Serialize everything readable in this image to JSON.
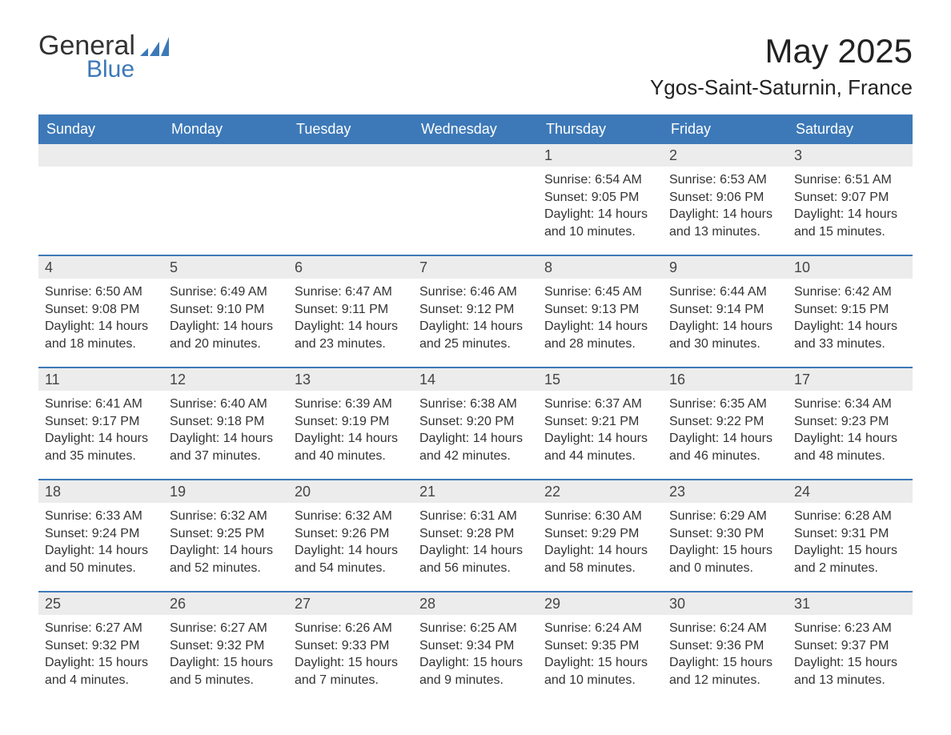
{
  "logo": {
    "general": "General",
    "blue": "Blue"
  },
  "header": {
    "title": "May 2025",
    "location": "Ygos-Saint-Saturnin, France"
  },
  "colors": {
    "header_bg": "#3d79b8",
    "header_text": "#ffffff",
    "daynum_bg": "#ececec",
    "row_border": "#3d79b8",
    "text": "#333333",
    "logo_blue": "#3d79b8"
  },
  "day_headers": [
    "Sunday",
    "Monday",
    "Tuesday",
    "Wednesday",
    "Thursday",
    "Friday",
    "Saturday"
  ],
  "weeks": [
    [
      {
        "empty": true
      },
      {
        "empty": true
      },
      {
        "empty": true
      },
      {
        "empty": true
      },
      {
        "num": "1",
        "sunrise": "Sunrise: 6:54 AM",
        "sunset": "Sunset: 9:05 PM",
        "daylight1": "Daylight: 14 hours",
        "daylight2": "and 10 minutes."
      },
      {
        "num": "2",
        "sunrise": "Sunrise: 6:53 AM",
        "sunset": "Sunset: 9:06 PM",
        "daylight1": "Daylight: 14 hours",
        "daylight2": "and 13 minutes."
      },
      {
        "num": "3",
        "sunrise": "Sunrise: 6:51 AM",
        "sunset": "Sunset: 9:07 PM",
        "daylight1": "Daylight: 14 hours",
        "daylight2": "and 15 minutes."
      }
    ],
    [
      {
        "num": "4",
        "sunrise": "Sunrise: 6:50 AM",
        "sunset": "Sunset: 9:08 PM",
        "daylight1": "Daylight: 14 hours",
        "daylight2": "and 18 minutes."
      },
      {
        "num": "5",
        "sunrise": "Sunrise: 6:49 AM",
        "sunset": "Sunset: 9:10 PM",
        "daylight1": "Daylight: 14 hours",
        "daylight2": "and 20 minutes."
      },
      {
        "num": "6",
        "sunrise": "Sunrise: 6:47 AM",
        "sunset": "Sunset: 9:11 PM",
        "daylight1": "Daylight: 14 hours",
        "daylight2": "and 23 minutes."
      },
      {
        "num": "7",
        "sunrise": "Sunrise: 6:46 AM",
        "sunset": "Sunset: 9:12 PM",
        "daylight1": "Daylight: 14 hours",
        "daylight2": "and 25 minutes."
      },
      {
        "num": "8",
        "sunrise": "Sunrise: 6:45 AM",
        "sunset": "Sunset: 9:13 PM",
        "daylight1": "Daylight: 14 hours",
        "daylight2": "and 28 minutes."
      },
      {
        "num": "9",
        "sunrise": "Sunrise: 6:44 AM",
        "sunset": "Sunset: 9:14 PM",
        "daylight1": "Daylight: 14 hours",
        "daylight2": "and 30 minutes."
      },
      {
        "num": "10",
        "sunrise": "Sunrise: 6:42 AM",
        "sunset": "Sunset: 9:15 PM",
        "daylight1": "Daylight: 14 hours",
        "daylight2": "and 33 minutes."
      }
    ],
    [
      {
        "num": "11",
        "sunrise": "Sunrise: 6:41 AM",
        "sunset": "Sunset: 9:17 PM",
        "daylight1": "Daylight: 14 hours",
        "daylight2": "and 35 minutes."
      },
      {
        "num": "12",
        "sunrise": "Sunrise: 6:40 AM",
        "sunset": "Sunset: 9:18 PM",
        "daylight1": "Daylight: 14 hours",
        "daylight2": "and 37 minutes."
      },
      {
        "num": "13",
        "sunrise": "Sunrise: 6:39 AM",
        "sunset": "Sunset: 9:19 PM",
        "daylight1": "Daylight: 14 hours",
        "daylight2": "and 40 minutes."
      },
      {
        "num": "14",
        "sunrise": "Sunrise: 6:38 AM",
        "sunset": "Sunset: 9:20 PM",
        "daylight1": "Daylight: 14 hours",
        "daylight2": "and 42 minutes."
      },
      {
        "num": "15",
        "sunrise": "Sunrise: 6:37 AM",
        "sunset": "Sunset: 9:21 PM",
        "daylight1": "Daylight: 14 hours",
        "daylight2": "and 44 minutes."
      },
      {
        "num": "16",
        "sunrise": "Sunrise: 6:35 AM",
        "sunset": "Sunset: 9:22 PM",
        "daylight1": "Daylight: 14 hours",
        "daylight2": "and 46 minutes."
      },
      {
        "num": "17",
        "sunrise": "Sunrise: 6:34 AM",
        "sunset": "Sunset: 9:23 PM",
        "daylight1": "Daylight: 14 hours",
        "daylight2": "and 48 minutes."
      }
    ],
    [
      {
        "num": "18",
        "sunrise": "Sunrise: 6:33 AM",
        "sunset": "Sunset: 9:24 PM",
        "daylight1": "Daylight: 14 hours",
        "daylight2": "and 50 minutes."
      },
      {
        "num": "19",
        "sunrise": "Sunrise: 6:32 AM",
        "sunset": "Sunset: 9:25 PM",
        "daylight1": "Daylight: 14 hours",
        "daylight2": "and 52 minutes."
      },
      {
        "num": "20",
        "sunrise": "Sunrise: 6:32 AM",
        "sunset": "Sunset: 9:26 PM",
        "daylight1": "Daylight: 14 hours",
        "daylight2": "and 54 minutes."
      },
      {
        "num": "21",
        "sunrise": "Sunrise: 6:31 AM",
        "sunset": "Sunset: 9:28 PM",
        "daylight1": "Daylight: 14 hours",
        "daylight2": "and 56 minutes."
      },
      {
        "num": "22",
        "sunrise": "Sunrise: 6:30 AM",
        "sunset": "Sunset: 9:29 PM",
        "daylight1": "Daylight: 14 hours",
        "daylight2": "and 58 minutes."
      },
      {
        "num": "23",
        "sunrise": "Sunrise: 6:29 AM",
        "sunset": "Sunset: 9:30 PM",
        "daylight1": "Daylight: 15 hours",
        "daylight2": "and 0 minutes."
      },
      {
        "num": "24",
        "sunrise": "Sunrise: 6:28 AM",
        "sunset": "Sunset: 9:31 PM",
        "daylight1": "Daylight: 15 hours",
        "daylight2": "and 2 minutes."
      }
    ],
    [
      {
        "num": "25",
        "sunrise": "Sunrise: 6:27 AM",
        "sunset": "Sunset: 9:32 PM",
        "daylight1": "Daylight: 15 hours",
        "daylight2": "and 4 minutes."
      },
      {
        "num": "26",
        "sunrise": "Sunrise: 6:27 AM",
        "sunset": "Sunset: 9:32 PM",
        "daylight1": "Daylight: 15 hours",
        "daylight2": "and 5 minutes."
      },
      {
        "num": "27",
        "sunrise": "Sunrise: 6:26 AM",
        "sunset": "Sunset: 9:33 PM",
        "daylight1": "Daylight: 15 hours",
        "daylight2": "and 7 minutes."
      },
      {
        "num": "28",
        "sunrise": "Sunrise: 6:25 AM",
        "sunset": "Sunset: 9:34 PM",
        "daylight1": "Daylight: 15 hours",
        "daylight2": "and 9 minutes."
      },
      {
        "num": "29",
        "sunrise": "Sunrise: 6:24 AM",
        "sunset": "Sunset: 9:35 PM",
        "daylight1": "Daylight: 15 hours",
        "daylight2": "and 10 minutes."
      },
      {
        "num": "30",
        "sunrise": "Sunrise: 6:24 AM",
        "sunset": "Sunset: 9:36 PM",
        "daylight1": "Daylight: 15 hours",
        "daylight2": "and 12 minutes."
      },
      {
        "num": "31",
        "sunrise": "Sunrise: 6:23 AM",
        "sunset": "Sunset: 9:37 PM",
        "daylight1": "Daylight: 15 hours",
        "daylight2": "and 13 minutes."
      }
    ]
  ]
}
